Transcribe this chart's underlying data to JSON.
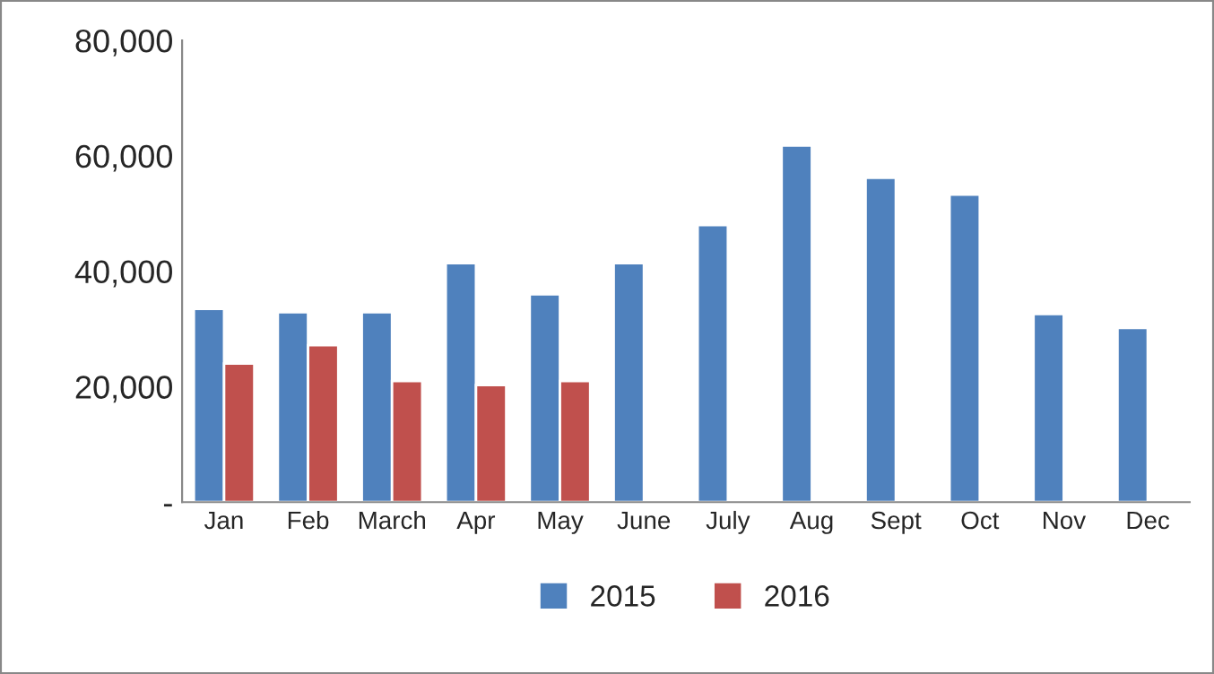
{
  "chart_data": {
    "type": "bar",
    "categories": [
      "Jan",
      "Feb",
      "March",
      "Apr",
      "May",
      "June",
      "July",
      "Aug",
      "Sept",
      "Oct",
      "Nov",
      "Dec"
    ],
    "series": [
      {
        "name": "2015",
        "color": "#4f81bd",
        "values": [
          33500,
          32900,
          32900,
          41400,
          36000,
          41400,
          48000,
          61800,
          56200,
          53300,
          32600,
          30200
        ]
      },
      {
        "name": "2016",
        "color": "#c0504d",
        "values": [
          24000,
          27200,
          21000,
          20300,
          21000,
          null,
          null,
          null,
          null,
          null,
          null,
          null
        ]
      }
    ],
    "ylim": [
      0,
      80000
    ],
    "yticks": [
      {
        "value": 0,
        "label": "-"
      },
      {
        "value": 20000,
        "label": "20,000"
      },
      {
        "value": 40000,
        "label": "40,000"
      },
      {
        "value": 60000,
        "label": "60,000"
      },
      {
        "value": 80000,
        "label": "80,000"
      }
    ],
    "grid": false,
    "legend": "bottom"
  }
}
